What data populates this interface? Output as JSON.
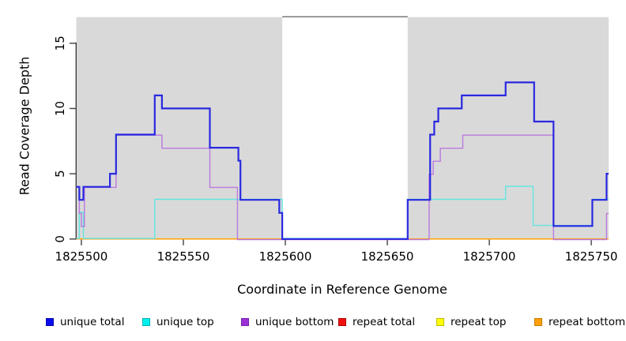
{
  "chart_data": {
    "type": "line",
    "subtype": "step-coverage",
    "title": "",
    "xlabel": "Coordinate in Reference Genome",
    "ylabel": "Read Coverage Depth",
    "xlim": [
      1825497.5,
      1825758.5
    ],
    "ylim": [
      0,
      17
    ],
    "xticks": [
      1825500,
      1825550,
      1825600,
      1825650,
      1825700,
      1825750
    ],
    "yticks": [
      0,
      5,
      10,
      15
    ],
    "grid": false,
    "legend_position": "bottom",
    "plot_background": "#ffffff",
    "shaded_region_color": "#d9d9d9",
    "shaded_regions": [
      [
        1825497.5,
        1825598.5
      ],
      [
        1825660,
        1825758.5
      ]
    ],
    "uncovered_gap": [
      1825598.5,
      1825660
    ],
    "series": [
      {
        "name": "unique total",
        "color": "#2929e0",
        "width": 2.2,
        "steps": [
          [
            1825497.5,
            4
          ],
          [
            1825499,
            3
          ],
          [
            1825501,
            4
          ],
          [
            1825514,
            5
          ],
          [
            1825517,
            8
          ],
          [
            1825536,
            11
          ],
          [
            1825539.5,
            10
          ],
          [
            1825563,
            7
          ],
          [
            1825577,
            6
          ],
          [
            1825578,
            3
          ],
          [
            1825597,
            2
          ],
          [
            1825598.5,
            0
          ],
          [
            1825660,
            3
          ],
          [
            1825671,
            8
          ],
          [
            1825673,
            9
          ],
          [
            1825675,
            10
          ],
          [
            1825686.5,
            11
          ],
          [
            1825708,
            12
          ],
          [
            1825722,
            9
          ],
          [
            1825731.5,
            1
          ],
          [
            1825750.5,
            3
          ],
          [
            1825757.5,
            5
          ]
        ]
      },
      {
        "name": "unique top",
        "color": "#63e5e2",
        "width": 1.4,
        "steps": [
          [
            1825497.5,
            0
          ],
          [
            1825499,
            2
          ],
          [
            1825501,
            0
          ],
          [
            1825536,
            3
          ],
          [
            1825598.5,
            0
          ],
          [
            1825660,
            3
          ],
          [
            1825708,
            4
          ],
          [
            1825721.5,
            1
          ],
          [
            1825750.5,
            3
          ]
        ]
      },
      {
        "name": "unique bottom",
        "color": "#bb79df",
        "width": 1.4,
        "steps": [
          [
            1825497.5,
            4
          ],
          [
            1825499,
            2
          ],
          [
            1825500,
            1
          ],
          [
            1825501.5,
            4
          ],
          [
            1825517,
            8
          ],
          [
            1825539.5,
            7
          ],
          [
            1825563,
            4
          ],
          [
            1825576.5,
            0
          ],
          [
            1825670.5,
            5
          ],
          [
            1825672.5,
            6
          ],
          [
            1825676,
            7
          ],
          [
            1825687,
            8
          ],
          [
            1825731.5,
            0
          ],
          [
            1825757.5,
            2
          ]
        ]
      },
      {
        "name": "repeat total",
        "color": "#ee3b3b",
        "width": 1.2,
        "steps": [
          [
            1825497.5,
            0
          ]
        ]
      },
      {
        "name": "repeat top",
        "color": "#f0f046",
        "width": 1.2,
        "steps": [
          [
            1825497.5,
            0
          ]
        ]
      },
      {
        "name": "repeat bottom",
        "color": "#ff9d12",
        "width": 1.5,
        "steps": [
          [
            1825497.5,
            0
          ]
        ]
      }
    ],
    "legend": [
      {
        "label": "unique total",
        "fill": "#0b0bee",
        "border": "#0707b0"
      },
      {
        "label": "unique top",
        "fill": "#00f0f0",
        "border": "#00b0b0"
      },
      {
        "label": "unique bottom",
        "fill": "#9d2fd6",
        "border": "#7b20ad"
      },
      {
        "label": "repeat total",
        "fill": "#f01111",
        "border": "#b00000"
      },
      {
        "label": "repeat top",
        "fill": "#ffff05",
        "border": "#bdbd00"
      },
      {
        "label": "repeat bottom",
        "fill": "#ffa008",
        "border": "#c67c00"
      }
    ]
  }
}
